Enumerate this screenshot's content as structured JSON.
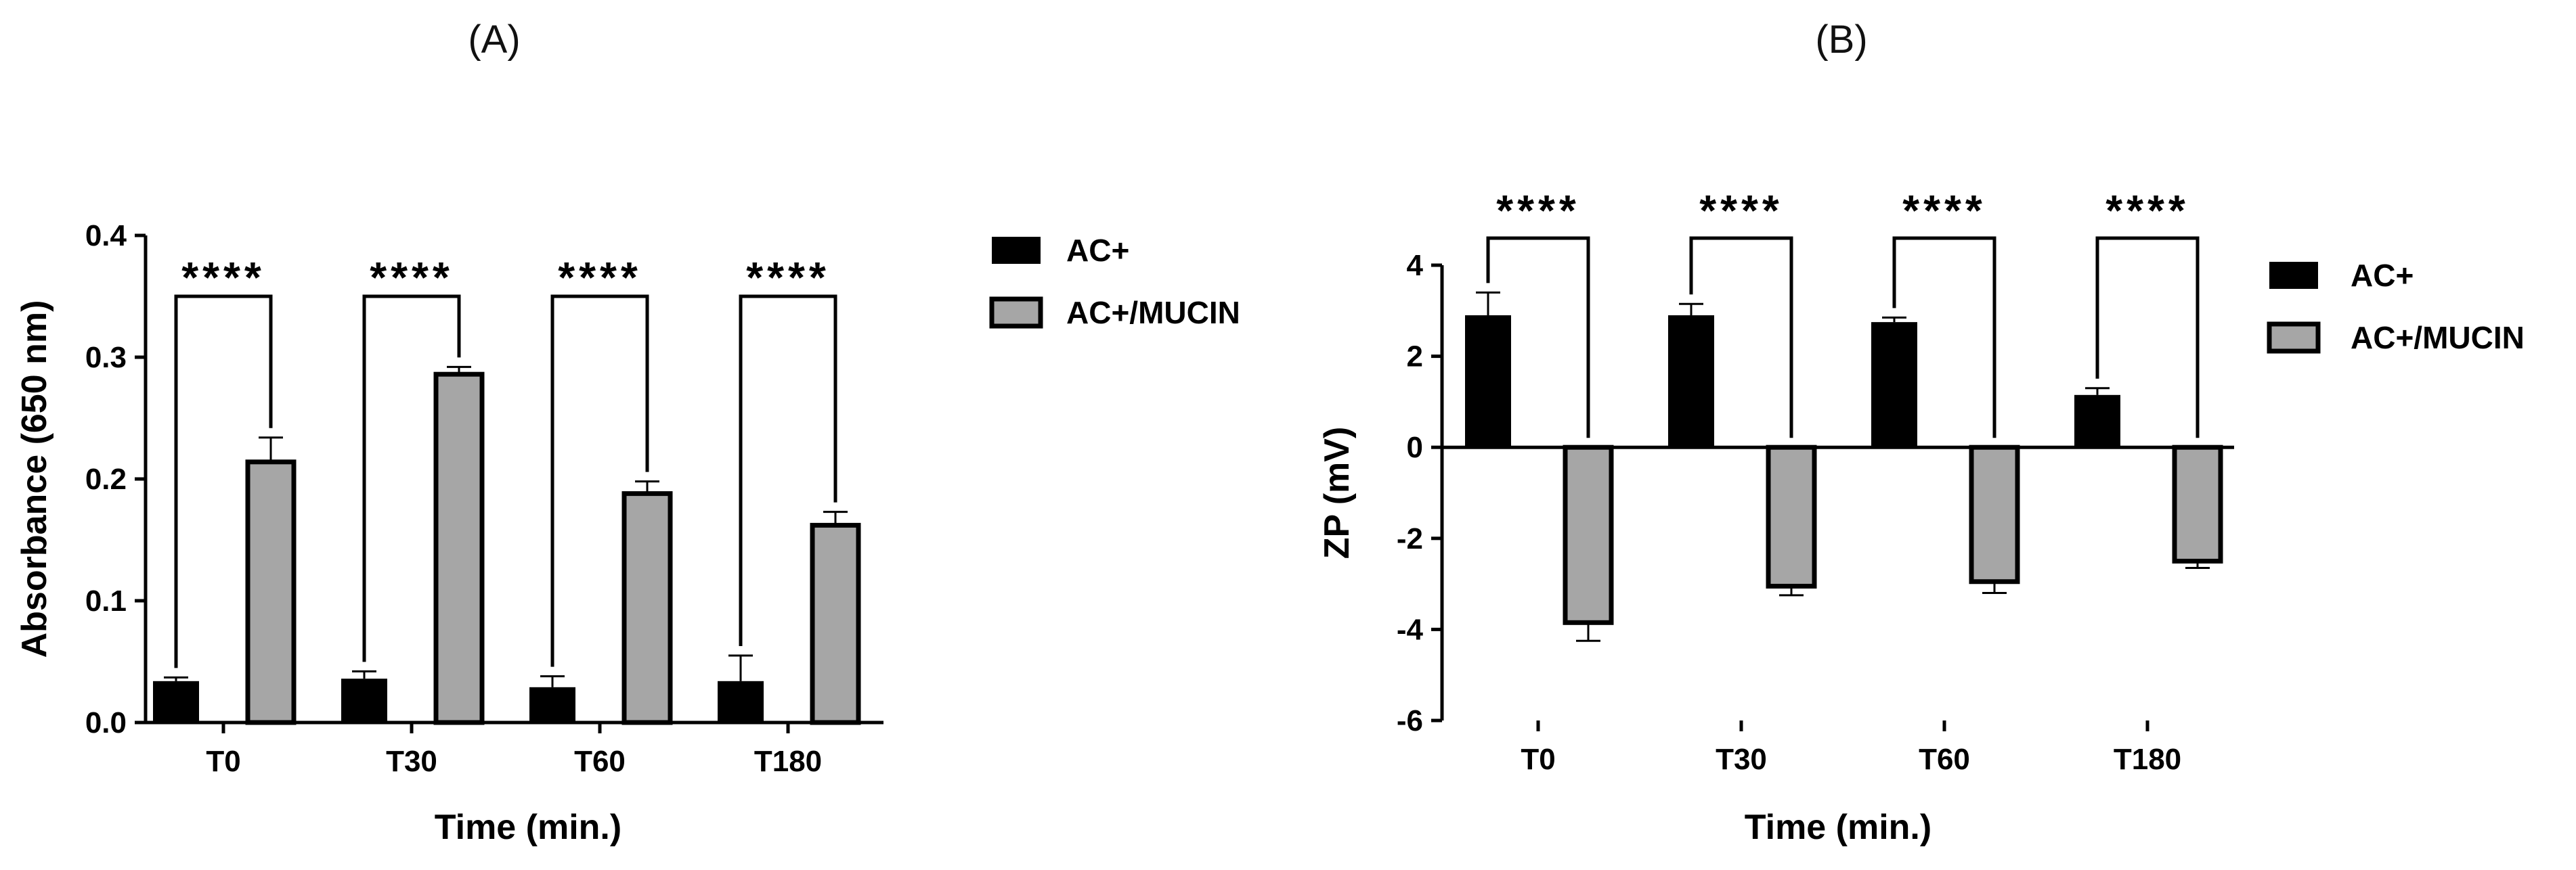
{
  "chart_data": [
    {
      "panel": "(A)",
      "type": "bar",
      "xlabel": "Time (min.)",
      "ylabel": "Absorbance (650 nm)",
      "categories": [
        "T0",
        "T30",
        "T60",
        "T180"
      ],
      "ylim": [
        0,
        0.4
      ],
      "yticks": [
        0.0,
        0.1,
        0.2,
        0.3,
        0.4
      ],
      "ytick_labels": [
        "0.0",
        "0.1",
        "0.2",
        "0.3",
        "0.4"
      ],
      "series": [
        {
          "name": "AC+",
          "color": "#000000",
          "values": [
            0.034,
            0.036,
            0.029,
            0.034
          ],
          "errors": [
            0.003,
            0.006,
            0.009,
            0.021
          ]
        },
        {
          "name": "AC+/MUCIN",
          "color": "#a6a6a6",
          "values": [
            0.214,
            0.286,
            0.188,
            0.162
          ],
          "errors": [
            0.02,
            0.006,
            0.01,
            0.011
          ]
        }
      ],
      "significance": [
        "****",
        "****",
        "****",
        "****"
      ],
      "grid": false,
      "legend": "right"
    },
    {
      "panel": "(B)",
      "type": "bar",
      "xlabel": "Time (min.)",
      "ylabel": "ZP (mV)",
      "categories": [
        "T0",
        "T30",
        "T60",
        "T180"
      ],
      "ylim": [
        -6,
        4
      ],
      "yticks": [
        -6,
        -4,
        -2,
        0,
        2,
        4
      ],
      "ytick_labels": [
        "-6",
        "-4",
        "-2",
        "0",
        "2",
        "4"
      ],
      "series": [
        {
          "name": "AC+",
          "color": "#000000",
          "values": [
            2.9,
            2.9,
            2.75,
            1.15
          ],
          "errors": [
            0.5,
            0.25,
            0.1,
            0.15
          ]
        },
        {
          "name": "AC+/MUCIN",
          "color": "#a6a6a6",
          "values": [
            -3.85,
            -3.05,
            -2.95,
            -2.5
          ],
          "errors": [
            0.4,
            0.2,
            0.25,
            0.15
          ]
        }
      ],
      "significance": [
        "****",
        "****",
        "****",
        "****"
      ],
      "grid": false,
      "legend": "right"
    }
  ]
}
